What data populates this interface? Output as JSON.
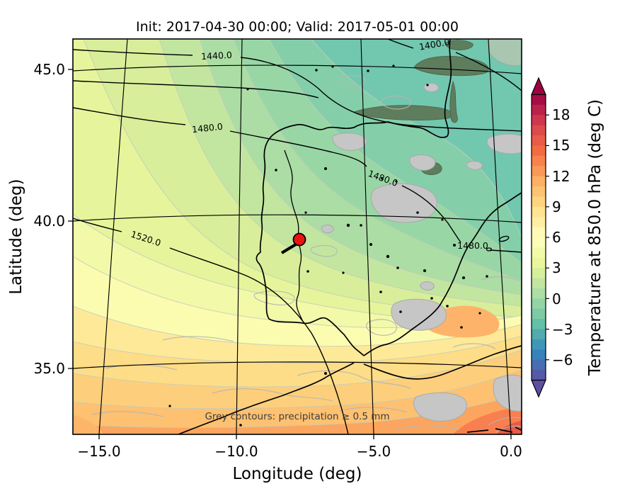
{
  "title": "Init: 2017-04-30 00:00; Valid: 2017-05-01 00:00",
  "axes": {
    "xlabel": "Longitude (deg)",
    "ylabel": "Latitude (deg)",
    "xticks": [
      "−15.0",
      "−10.0",
      "−5.0",
      "0.0"
    ],
    "yticks": [
      "45.0",
      "40.0",
      "35.0"
    ]
  },
  "colorbar": {
    "label": "Temperature at 850.0 hPa (deg C)",
    "ticks": [
      "18",
      "15",
      "12",
      "9",
      "6",
      "3",
      "0",
      "−3",
      "−6"
    ],
    "stops_top_to_bottom": [
      "#9e0142",
      "#d53e4f",
      "#f46d43",
      "#fdae61",
      "#fee08b",
      "#ffffbf",
      "#e6f598",
      "#abdda4",
      "#66c2a5",
      "#3288bd",
      "#5e4fa2"
    ],
    "outline_color": "#000000"
  },
  "annotation": "Grey contours: precipitation ≥ 0.5 mm",
  "contour_labels": {
    "c1400": "1400.0",
    "c1440": "1440.0",
    "c1480a": "1480.0",
    "c1480b": "1480.0",
    "c1480c": "1480.0",
    "c1520": "1520.0"
  },
  "marker": {
    "color": "#ee1111",
    "edge_color": "#000000",
    "lon_est": -7.8,
    "lat_est": 39.4
  },
  "map_colors": {
    "base_teal": "#72c7af",
    "b0": "#84cfaa",
    "b1": "#98d7a5",
    "b2": "#abdda4",
    "b3": "#c2e69f",
    "b4": "#d8ee9b",
    "b5": "#e6f59b",
    "b6": "#f2f9a9",
    "b7": "#fbfcb0",
    "b8": "#fee999",
    "b9": "#fedd88",
    "b10": "#fdcf7c",
    "b11": "#fdc171",
    "b12": "#fca55f",
    "warm_tongue": "#fdb46a",
    "corner1": "#f87f50",
    "corner2": "#e85a47",
    "bl_blob": "#fdb569",
    "grey_patch": "#c6c6c6",
    "olive_patch": "#5e7d5c",
    "corner_grey_green": "#a9c6b0"
  },
  "chart_data": {
    "type": "heatmap",
    "title": "Init: 2017-04-30 00:00; Valid: 2017-05-01 00:00",
    "xlabel": "Longitude (deg)",
    "ylabel": "Latitude (deg)",
    "x_ticks": [
      -15.0,
      -10.0,
      -5.0,
      0.0
    ],
    "y_ticks": [
      35.0,
      40.0,
      45.0
    ],
    "xlim_est": [
      -16.2,
      0.4
    ],
    "ylim_est": [
      33.6,
      46.3
    ],
    "grid": "curved lat/lon graticule in black",
    "colorbar": {
      "label": "Temperature at 850.0 hPa (deg C)",
      "ticks": [
        -6,
        -3,
        0,
        3,
        6,
        9,
        12,
        15,
        18
      ],
      "range_est": [
        -8,
        20
      ],
      "colormap": "Spectral reversed (dark red warm at top, purple cold at bottom), with extend arrows both ends",
      "position": "right"
    },
    "field_description": "Filled 850 hPa temperature contours over the Iberian Peninsula region: cold air (~-2 to +2 C, teal/green) over northern Spain, Bay of Biscay and France; mild (3-7 C, yellow-green) over central Iberia and the Atlantic west of Portugal; warm (9-14 C, orange) over southern Iberia and North Africa; warmest (~15-18 C) in the far south-east corner (Algeria)",
    "black_contours": {
      "quantity": "850 hPa geopotential height (m), labeled black lines",
      "labeled_levels": [
        1400.0,
        1440.0,
        1480.0,
        1520.0
      ],
      "label_positions": "1400.0 near top right; 1440.0 top centre-left; 1480.0 labeled three times across the middle; 1520.0 on the west side descending to the south"
    },
    "grey_contours": "precipitation >= 0.5 mm shown as thin grey contour lines with solid grey shaded patches (dark green-grey where over the green cold sector, e.g. over France)",
    "marker": {
      "style": "red filled circle with black edge",
      "lon_est": -7.8,
      "lat_est": 39.4
    },
    "annotation": "Grey contours: precipitation ≥ 0.5 mm"
  }
}
